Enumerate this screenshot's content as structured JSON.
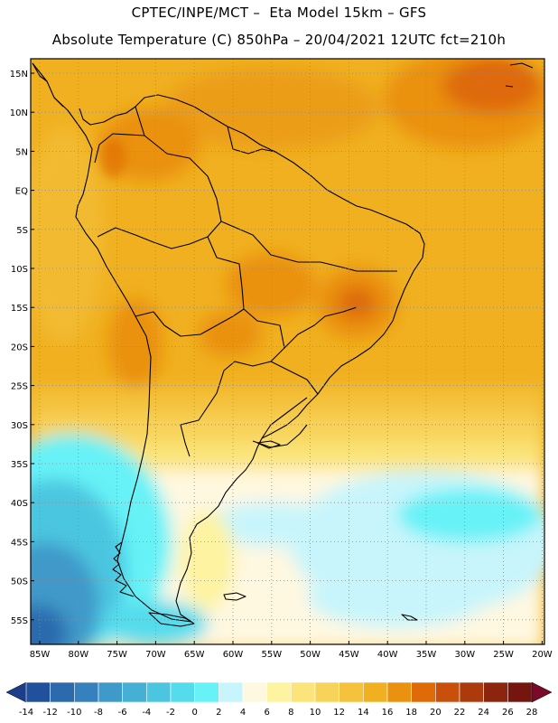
{
  "header": {
    "title_line1": "CPTEC/INPE/MCT –  Eta Model 15km – GFS",
    "title_line2": "Absolute Temperature (C) 850hPa – 20/04/2021 12UTC fct=210h"
  },
  "map": {
    "lat_labels": [
      "15N",
      "10N",
      "5N",
      "EQ",
      "5S",
      "10S",
      "15S",
      "20S",
      "25S",
      "30S",
      "35S",
      "40S",
      "45S",
      "50S",
      "55S"
    ],
    "lon_labels": [
      "85W",
      "80W",
      "75W",
      "70W",
      "65W",
      "60W",
      "55W",
      "50W",
      "45W",
      "40W",
      "35W",
      "30W",
      "25W",
      "20W"
    ],
    "grid": "dotted"
  },
  "colorbar": {
    "labels": [
      "-14",
      "-12",
      "-10",
      "-8",
      "-6",
      "-4",
      "-2",
      "0",
      "2",
      "4",
      "6",
      "8",
      "10",
      "12",
      "14",
      "16",
      "18",
      "20",
      "22",
      "24",
      "26",
      "28"
    ],
    "colors": [
      "#1b3e8c",
      "#21519c",
      "#2a6aad",
      "#3581bd",
      "#3f99c9",
      "#45afd4",
      "#4cc6e0",
      "#55dcec",
      "#66f2f7",
      "#c8f5fb",
      "#fff8e0",
      "#fdf3a0",
      "#fbe47a",
      "#f8d35a",
      "#f4c23c",
      "#f0b020",
      "#ea9110",
      "#de6a08",
      "#c9500b",
      "#ad3a0c",
      "#8c250d",
      "#741510",
      "#7a0a2a"
    ]
  }
}
